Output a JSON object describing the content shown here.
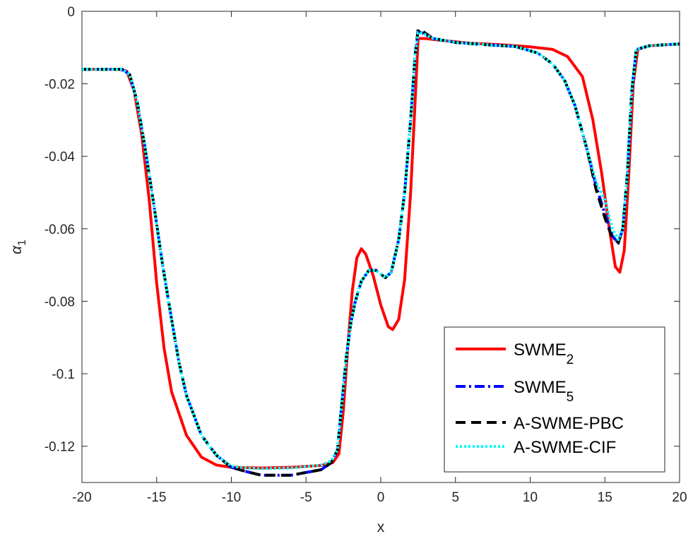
{
  "chart_data": {
    "type": "line",
    "xlabel": "x",
    "ylabel": "α",
    "ylabel_subscript": "1",
    "xlim": [
      -20,
      20
    ],
    "ylim": [
      -0.13,
      0
    ],
    "xticks": [
      -20,
      -15,
      -10,
      -5,
      0,
      5,
      10,
      15,
      20
    ],
    "xtick_labels": [
      "-20",
      "-15",
      "-10",
      "-5",
      "0",
      "5",
      "10",
      "15",
      "20"
    ],
    "yticks": [
      0,
      -0.02,
      -0.04,
      -0.06,
      -0.08,
      -0.1,
      -0.12
    ],
    "ytick_labels": [
      "0",
      "-0.02",
      "-0.04",
      "-0.06",
      "-0.08",
      "-0.1",
      "-0.12"
    ],
    "grid": false,
    "legend_position": "bottom-right",
    "series": [
      {
        "name": "SWME",
        "name_subscript": "2",
        "color": "#ff0000",
        "style": "solid",
        "points": [
          [
            -20,
            -0.016
          ],
          [
            -17.5,
            -0.016
          ],
          [
            -17,
            -0.0165
          ],
          [
            -16.5,
            -0.022
          ],
          [
            -16,
            -0.034
          ],
          [
            -15.5,
            -0.052
          ],
          [
            -15,
            -0.075
          ],
          [
            -14.5,
            -0.093
          ],
          [
            -14,
            -0.105
          ],
          [
            -13,
            -0.117
          ],
          [
            -12,
            -0.123
          ],
          [
            -11,
            -0.1252
          ],
          [
            -10,
            -0.1258
          ],
          [
            -8,
            -0.126
          ],
          [
            -6,
            -0.1258
          ],
          [
            -4,
            -0.1253
          ],
          [
            -3.2,
            -0.1245
          ],
          [
            -2.8,
            -0.122
          ],
          [
            -2.5,
            -0.11
          ],
          [
            -2.2,
            -0.092
          ],
          [
            -1.9,
            -0.077
          ],
          [
            -1.6,
            -0.068
          ],
          [
            -1.3,
            -0.0655
          ],
          [
            -1.0,
            -0.067
          ],
          [
            -0.5,
            -0.073
          ],
          [
            0,
            -0.081
          ],
          [
            0.5,
            -0.087
          ],
          [
            0.8,
            -0.0878
          ],
          [
            1.2,
            -0.085
          ],
          [
            1.6,
            -0.074
          ],
          [
            2.0,
            -0.05
          ],
          [
            2.3,
            -0.025
          ],
          [
            2.5,
            -0.0075
          ],
          [
            3,
            -0.0075
          ],
          [
            4,
            -0.008
          ],
          [
            6,
            -0.0088
          ],
          [
            8,
            -0.0092
          ],
          [
            10,
            -0.0098
          ],
          [
            11.5,
            -0.0105
          ],
          [
            12.5,
            -0.0125
          ],
          [
            13.5,
            -0.018
          ],
          [
            14.2,
            -0.03
          ],
          [
            14.8,
            -0.045
          ],
          [
            15.3,
            -0.06
          ],
          [
            15.7,
            -0.0705
          ],
          [
            16.0,
            -0.072
          ],
          [
            16.3,
            -0.066
          ],
          [
            16.6,
            -0.045
          ],
          [
            16.9,
            -0.02
          ],
          [
            17.2,
            -0.0105
          ],
          [
            18,
            -0.0095
          ],
          [
            20,
            -0.009
          ]
        ]
      },
      {
        "name": "SWME",
        "name_subscript": "5",
        "color": "#0000ff",
        "style": "dashdot",
        "points": [
          [
            -20,
            -0.016
          ],
          [
            -17.3,
            -0.016
          ],
          [
            -16.8,
            -0.0175
          ],
          [
            -16.3,
            -0.025
          ],
          [
            -15.8,
            -0.037
          ],
          [
            -15.2,
            -0.053
          ],
          [
            -14.6,
            -0.07
          ],
          [
            -14,
            -0.085
          ],
          [
            -13.5,
            -0.097
          ],
          [
            -13,
            -0.106
          ],
          [
            -12,
            -0.117
          ],
          [
            -11,
            -0.1225
          ],
          [
            -10,
            -0.1258
          ],
          [
            -9,
            -0.127
          ],
          [
            -8,
            -0.128
          ],
          [
            -6,
            -0.128
          ],
          [
            -4,
            -0.1265
          ],
          [
            -3.3,
            -0.1245
          ],
          [
            -2.9,
            -0.121
          ],
          [
            -2.6,
            -0.108
          ],
          [
            -2.3,
            -0.095
          ],
          [
            -2.0,
            -0.086
          ],
          [
            -1.7,
            -0.08
          ],
          [
            -1.3,
            -0.0745
          ],
          [
            -0.8,
            -0.0715
          ],
          [
            -0.3,
            -0.0715
          ],
          [
            0,
            -0.0725
          ],
          [
            0.3,
            -0.0735
          ],
          [
            0.7,
            -0.072
          ],
          [
            1.2,
            -0.063
          ],
          [
            1.6,
            -0.05
          ],
          [
            2.0,
            -0.03
          ],
          [
            2.3,
            -0.012
          ],
          [
            2.5,
            -0.0055
          ],
          [
            2.8,
            -0.006
          ],
          [
            3.5,
            -0.0075
          ],
          [
            5,
            -0.0086
          ],
          [
            7,
            -0.0092
          ],
          [
            9,
            -0.0097
          ],
          [
            10.5,
            -0.0115
          ],
          [
            11.5,
            -0.0145
          ],
          [
            12.3,
            -0.019
          ],
          [
            13,
            -0.026
          ],
          [
            13.8,
            -0.038
          ],
          [
            14.4,
            -0.048
          ],
          [
            15,
            -0.056
          ],
          [
            15.5,
            -0.062
          ],
          [
            15.9,
            -0.064
          ],
          [
            16.2,
            -0.06
          ],
          [
            16.5,
            -0.045
          ],
          [
            16.8,
            -0.022
          ],
          [
            17.1,
            -0.0105
          ],
          [
            18,
            -0.0095
          ],
          [
            20,
            -0.009
          ]
        ]
      },
      {
        "name": "A-SWME-PBC",
        "color": "#000000",
        "style": "dashed",
        "points": [
          [
            -20,
            -0.016
          ],
          [
            -17.3,
            -0.016
          ],
          [
            -16.8,
            -0.0175
          ],
          [
            -16.3,
            -0.025
          ],
          [
            -15.8,
            -0.037
          ],
          [
            -15.2,
            -0.053
          ],
          [
            -14.6,
            -0.07
          ],
          [
            -14,
            -0.085
          ],
          [
            -13.5,
            -0.097
          ],
          [
            -13,
            -0.106
          ],
          [
            -12,
            -0.117
          ],
          [
            -11,
            -0.1225
          ],
          [
            -10,
            -0.1258
          ],
          [
            -9,
            -0.127
          ],
          [
            -8,
            -0.128
          ],
          [
            -6,
            -0.128
          ],
          [
            -4,
            -0.1265
          ],
          [
            -3.3,
            -0.1245
          ],
          [
            -2.9,
            -0.121
          ],
          [
            -2.6,
            -0.108
          ],
          [
            -2.3,
            -0.095
          ],
          [
            -2.0,
            -0.086
          ],
          [
            -1.7,
            -0.08
          ],
          [
            -1.3,
            -0.0745
          ],
          [
            -0.8,
            -0.0715
          ],
          [
            -0.3,
            -0.0715
          ],
          [
            0,
            -0.0725
          ],
          [
            0.3,
            -0.0735
          ],
          [
            0.7,
            -0.072
          ],
          [
            1.2,
            -0.063
          ],
          [
            1.6,
            -0.05
          ],
          [
            2.0,
            -0.03
          ],
          [
            2.3,
            -0.012
          ],
          [
            2.5,
            -0.005
          ],
          [
            2.8,
            -0.0055
          ],
          [
            3.5,
            -0.0075
          ],
          [
            5,
            -0.0086
          ],
          [
            7,
            -0.0092
          ],
          [
            9,
            -0.0097
          ],
          [
            10.5,
            -0.0115
          ],
          [
            11.5,
            -0.0145
          ],
          [
            12.3,
            -0.019
          ],
          [
            13,
            -0.026
          ],
          [
            13.8,
            -0.038
          ],
          [
            14.4,
            -0.049
          ],
          [
            15,
            -0.057
          ],
          [
            15.5,
            -0.0625
          ],
          [
            15.9,
            -0.0638
          ],
          [
            16.2,
            -0.06
          ],
          [
            16.5,
            -0.045
          ],
          [
            16.8,
            -0.022
          ],
          [
            17.1,
            -0.0105
          ],
          [
            18,
            -0.0095
          ],
          [
            20,
            -0.009
          ]
        ]
      },
      {
        "name": "A-SWME-CIF",
        "color": "#00ffff",
        "style": "dotted",
        "points": [
          [
            -20,
            -0.016
          ],
          [
            -17.3,
            -0.016
          ],
          [
            -16.8,
            -0.0175
          ],
          [
            -16.3,
            -0.025
          ],
          [
            -15.8,
            -0.037
          ],
          [
            -15.2,
            -0.053
          ],
          [
            -14.6,
            -0.07
          ],
          [
            -14,
            -0.085
          ],
          [
            -13.5,
            -0.097
          ],
          [
            -13,
            -0.106
          ],
          [
            -12,
            -0.117
          ],
          [
            -11,
            -0.1225
          ],
          [
            -10,
            -0.1255
          ],
          [
            -9,
            -0.126
          ],
          [
            -8,
            -0.1262
          ],
          [
            -6,
            -0.126
          ],
          [
            -4,
            -0.1252
          ],
          [
            -3.3,
            -0.124
          ],
          [
            -2.9,
            -0.121
          ],
          [
            -2.6,
            -0.108
          ],
          [
            -2.3,
            -0.095
          ],
          [
            -2.0,
            -0.086
          ],
          [
            -1.7,
            -0.08
          ],
          [
            -1.3,
            -0.0745
          ],
          [
            -0.8,
            -0.0715
          ],
          [
            -0.3,
            -0.0715
          ],
          [
            0,
            -0.0725
          ],
          [
            0.3,
            -0.0735
          ],
          [
            0.7,
            -0.072
          ],
          [
            1.2,
            -0.063
          ],
          [
            1.6,
            -0.05
          ],
          [
            2.0,
            -0.03
          ],
          [
            2.3,
            -0.012
          ],
          [
            2.5,
            -0.0058
          ],
          [
            2.8,
            -0.006
          ],
          [
            3.5,
            -0.0075
          ],
          [
            5,
            -0.0086
          ],
          [
            7,
            -0.0092
          ],
          [
            9,
            -0.0097
          ],
          [
            10.5,
            -0.0115
          ],
          [
            11.5,
            -0.0145
          ],
          [
            12.3,
            -0.019
          ],
          [
            13,
            -0.026
          ],
          [
            13.8,
            -0.038
          ],
          [
            14.4,
            -0.047
          ],
          [
            15,
            -0.052
          ],
          [
            15.5,
            -0.06
          ],
          [
            15.9,
            -0.063
          ],
          [
            16.2,
            -0.06
          ],
          [
            16.5,
            -0.045
          ],
          [
            16.8,
            -0.022
          ],
          [
            17.1,
            -0.0105
          ],
          [
            18,
            -0.0095
          ],
          [
            20,
            -0.009
          ]
        ]
      }
    ]
  }
}
